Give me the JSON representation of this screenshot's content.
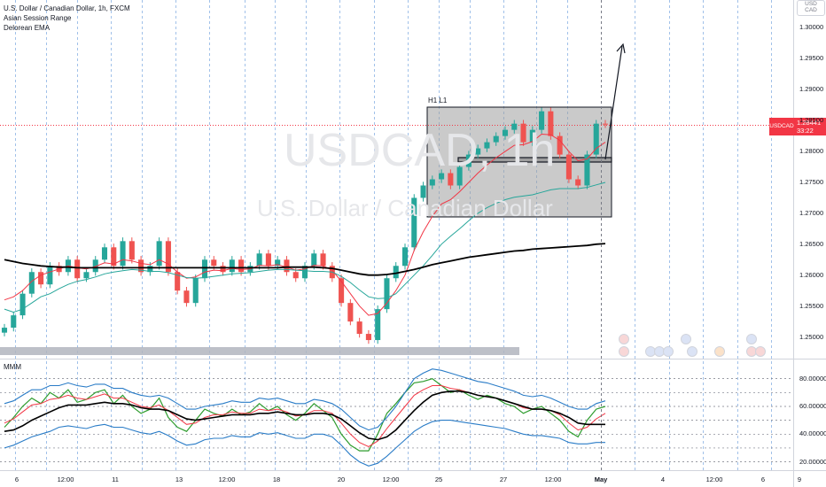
{
  "header": {
    "symbol_line": "U.S. Dollar / Canadian Dollar, 1h, FXCM",
    "indicator_1": "Asian Session Range",
    "indicator_2": "Delorean EMA"
  },
  "watermark": {
    "ticker": "USDCAD, 1h",
    "name": "U.S. Dollar / Canadian Dollar"
  },
  "currency_badge": {
    "line1": "USD",
    "line2": "CAD"
  },
  "price_badge": {
    "ticker": "USDCAD",
    "price": "1.28441",
    "countdown": "33:22"
  },
  "box_label": "H1 L1",
  "price_axis": [
    "1.30000",
    "1.29500",
    "1.29000",
    "1.28500",
    "1.28000",
    "1.27500",
    "1.27000",
    "1.26500",
    "1.26000",
    "1.25500",
    "1.25000"
  ],
  "time_axis": [
    "6",
    "12:00",
    "11",
    "13",
    "12:00",
    "18",
    "20",
    "12:00",
    "25",
    "27",
    "12:00",
    "May",
    "4",
    "12:00",
    "6",
    "9"
  ],
  "oscillator": {
    "name": "MMM",
    "levels": [
      "80.00000",
      "60.00000",
      "40.00000",
      "20.00000"
    ]
  },
  "colors": {
    "up_candle": "#26a69a",
    "down_candle": "#ef5350",
    "ema_fast": "#f23645",
    "ema_mid": "#26a69a",
    "ema_slow": "#000000",
    "ema_200": "#6a1b6a",
    "box_fill": "#9e9e9e",
    "price_line": "#f23645",
    "osc_green": "#2e9c2e",
    "osc_red": "#f23645",
    "osc_blue": "#2a7cc7",
    "osc_black": "#000000"
  },
  "chart_data": {
    "type": "line",
    "title": "U.S. Dollar / Canadian Dollar, 1h, FXCM",
    "xlabel": "",
    "ylabel": "",
    "ylim": [
      1.2465,
      1.3045
    ],
    "series": [
      {
        "values": [
          1.2515,
          1.2535,
          1.257,
          1.2605,
          1.2585,
          1.2615,
          1.2605,
          1.2625,
          1.2595,
          1.2605,
          1.2625,
          1.2645,
          1.2615,
          1.2655,
          1.2625,
          1.2605,
          1.2615,
          1.2655,
          1.2605,
          1.2575,
          1.2555,
          1.2595,
          1.2625,
          1.2615,
          1.2605,
          1.2625,
          1.2605,
          1.2615,
          1.2635,
          1.2615,
          1.2625,
          1.2605,
          1.2595,
          1.2615,
          1.2635,
          1.2615,
          1.2595,
          1.2555,
          1.2525,
          1.2505,
          1.2495,
          1.2545,
          1.2595,
          1.2615,
          1.2645,
          1.2725,
          1.2745,
          1.2755,
          1.2765,
          1.2745,
          1.2775,
          1.2795,
          1.2805,
          1.2815,
          1.2825,
          1.2835,
          1.2845,
          1.2815,
          1.2835,
          1.2865,
          1.2825,
          1.2795,
          1.2755,
          1.2745,
          1.2795,
          1.2845,
          1.2844
        ]
      },
      {
        "values": [
          1.256,
          1.2565,
          1.2575,
          1.259,
          1.26,
          1.2605,
          1.261,
          1.2615,
          1.2612,
          1.261,
          1.2614,
          1.262,
          1.2618,
          1.2625,
          1.2623,
          1.2619,
          1.2617,
          1.2625,
          1.2618,
          1.2605,
          1.2595,
          1.2597,
          1.2605,
          1.2608,
          1.2607,
          1.2611,
          1.2609,
          1.261,
          1.2616,
          1.2615,
          1.2617,
          1.2613,
          1.2608,
          1.261,
          1.2616,
          1.2615,
          1.2608,
          1.259,
          1.257,
          1.255,
          1.2535,
          1.2538,
          1.2555,
          1.2575,
          1.26,
          1.264,
          1.267,
          1.2695,
          1.2715,
          1.2722,
          1.2735,
          1.275,
          1.2765,
          1.2778,
          1.279,
          1.28,
          1.281,
          1.2811,
          1.2816,
          1.2828,
          1.2827,
          1.2818,
          1.28,
          1.2785,
          1.2788,
          1.2805,
          1.2815
        ]
      },
      {
        "values": [
          1.2545,
          1.254,
          1.2545,
          1.2555,
          1.2565,
          1.257,
          1.2578,
          1.2585,
          1.259,
          1.2593,
          1.2597,
          1.2602,
          1.2605,
          1.2607,
          1.2609,
          1.2608,
          1.2606,
          1.2606,
          1.2604,
          1.26,
          1.2596,
          1.2595,
          1.2596,
          1.2598,
          1.26,
          1.2602,
          1.2603,
          1.2604,
          1.2606,
          1.2608,
          1.2609,
          1.2609,
          1.2608,
          1.2607,
          1.2606,
          1.2606,
          1.2605,
          1.2598,
          1.2588,
          1.2576,
          1.2565,
          1.2562,
          1.2563,
          1.257,
          1.2585,
          1.26,
          1.2615,
          1.2632,
          1.265,
          1.2663,
          1.2675,
          1.2688,
          1.27,
          1.2709,
          1.2716,
          1.2722,
          1.2726,
          1.2728,
          1.273,
          1.2734,
          1.2738,
          1.274,
          1.274,
          1.274,
          1.2742,
          1.2746,
          1.275
        ]
      },
      {
        "values": [
          1.2625,
          1.2622,
          1.2619,
          1.2617,
          1.2615,
          1.2614,
          1.2613,
          1.2613,
          1.2612,
          1.2612,
          1.2612,
          1.2612,
          1.2612,
          1.2612,
          1.2612,
          1.2612,
          1.2612,
          1.2612,
          1.2612,
          1.2612,
          1.2612,
          1.2612,
          1.2612,
          1.2612,
          1.2612,
          1.2612,
          1.2612,
          1.2612,
          1.2612,
          1.2612,
          1.2612,
          1.2613,
          1.2613,
          1.2613,
          1.2613,
          1.2612,
          1.2611,
          1.2608,
          1.2605,
          1.2602,
          1.26,
          1.26,
          1.2601,
          1.2603,
          1.2606,
          1.2609,
          1.2613,
          1.2617,
          1.262,
          1.2623,
          1.2626,
          1.2629,
          1.2631,
          1.2633,
          1.2635,
          1.2637,
          1.2639,
          1.264,
          1.2642,
          1.2643,
          1.2644,
          1.2645,
          1.2646,
          1.2647,
          1.2648,
          1.265,
          1.2651
        ]
      }
    ],
    "oscillator": {
      "ylim": [
        14,
        90
      ],
      "series": [
        {
          "values": [
            45,
            52,
            60,
            66,
            62,
            70,
            66,
            72,
            63,
            65,
            70,
            72,
            62,
            68,
            60,
            55,
            58,
            66,
            52,
            45,
            42,
            50,
            58,
            55,
            53,
            58,
            54,
            56,
            62,
            57,
            60,
            54,
            50,
            55,
            62,
            57,
            52,
            40,
            32,
            28,
            28,
            40,
            55,
            62,
            70,
            77,
            78,
            80,
            75,
            70,
            72,
            68,
            65,
            68,
            66,
            62,
            60,
            55,
            58,
            60,
            55,
            50,
            42,
            38,
            50,
            58,
            60
          ]
        },
        {
          "values": [
            48,
            51,
            56,
            61,
            62,
            65,
            66,
            68,
            66,
            65,
            67,
            69,
            66,
            66,
            63,
            60,
            59,
            61,
            57,
            52,
            47,
            48,
            52,
            54,
            54,
            56,
            55,
            55,
            58,
            57,
            58,
            56,
            53,
            54,
            57,
            57,
            55,
            48,
            40,
            34,
            31,
            35,
            44,
            52,
            60,
            68,
            72,
            75,
            75,
            73,
            72,
            70,
            68,
            67,
            66,
            64,
            62,
            59,
            58,
            58,
            57,
            54,
            48,
            43,
            45,
            51,
            55
          ]
        },
        {
          "values": [
            42,
            43,
            46,
            50,
            53,
            56,
            59,
            61,
            61,
            61,
            62,
            63,
            62,
            62,
            61,
            59,
            58,
            58,
            57,
            54,
            51,
            50,
            51,
            52,
            53,
            54,
            54,
            54,
            55,
            55,
            56,
            55,
            54,
            54,
            55,
            55,
            54,
            51,
            46,
            41,
            37,
            36,
            38,
            43,
            50,
            57,
            63,
            68,
            70,
            71,
            71,
            70,
            68,
            67,
            66,
            64,
            62,
            60,
            58,
            58,
            57,
            55,
            52,
            48,
            47,
            47,
            47
          ]
        },
        {
          "values": [
            62,
            64,
            68,
            72,
            72,
            75,
            75,
            77,
            75,
            74,
            76,
            76,
            73,
            73,
            70,
            68,
            67,
            68,
            66,
            62,
            58,
            58,
            60,
            61,
            62,
            64,
            63,
            63,
            66,
            65,
            66,
            64,
            62,
            62,
            65,
            64,
            62,
            58,
            52,
            46,
            43,
            45,
            52,
            60,
            70,
            80,
            84,
            87,
            86,
            84,
            82,
            80,
            78,
            77,
            75,
            73,
            71,
            68,
            67,
            68,
            66,
            63,
            60,
            58,
            58,
            62,
            64
          ]
        },
        {
          "values": [
            30,
            32,
            35,
            38,
            40,
            42,
            45,
            46,
            45,
            44,
            46,
            47,
            45,
            45,
            43,
            41,
            40,
            42,
            39,
            35,
            32,
            33,
            36,
            37,
            37,
            39,
            38,
            38,
            41,
            40,
            41,
            39,
            37,
            37,
            40,
            40,
            38,
            32,
            25,
            20,
            17,
            19,
            24,
            30,
            36,
            42,
            46,
            49,
            50,
            50,
            49,
            48,
            47,
            46,
            45,
            44,
            42,
            40,
            39,
            39,
            38,
            37,
            34,
            33,
            33,
            34,
            34
          ]
        }
      ]
    }
  }
}
